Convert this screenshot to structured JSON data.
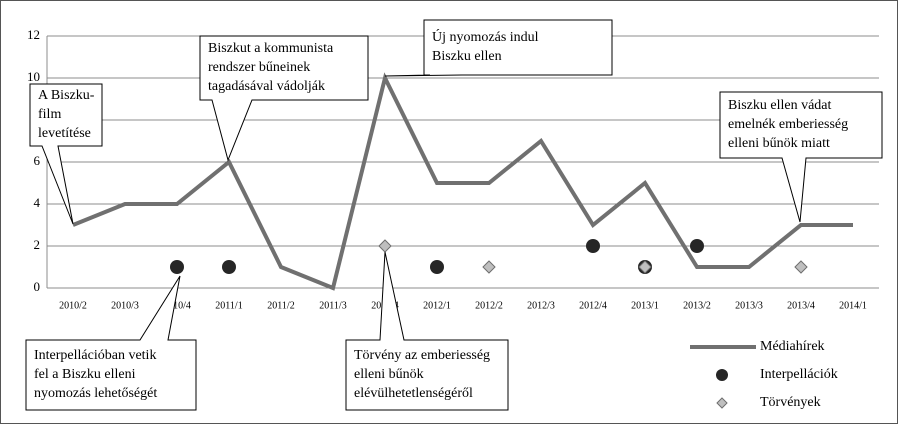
{
  "chart_data": {
    "type": "line",
    "categories": [
      "2010/2",
      "2010/3",
      "2010/4",
      "2011/1",
      "2011/2",
      "2011/3",
      "2011/4",
      "2012/1",
      "2012/2",
      "2012/3",
      "2012/4",
      "2013/1",
      "2013/2",
      "2013/3",
      "2013/4",
      "2014/1"
    ],
    "series": [
      {
        "name": "Médiahírek",
        "color": "#707070",
        "marker": "line",
        "values": [
          3,
          4,
          4,
          6,
          1,
          0,
          10,
          5,
          5,
          7,
          3,
          5,
          1,
          1,
          3,
          3
        ]
      },
      {
        "name": "Interpellációk",
        "color": "#262626",
        "marker": "circle",
        "values": [
          null,
          null,
          1,
          1,
          null,
          null,
          null,
          1,
          null,
          null,
          2,
          1,
          2,
          null,
          null,
          null
        ]
      },
      {
        "name": "Törvények",
        "color": "#bfbfbf",
        "marker": "diamond",
        "values": [
          null,
          null,
          null,
          null,
          null,
          null,
          2,
          null,
          1,
          null,
          null,
          1,
          null,
          null,
          1,
          null
        ]
      }
    ],
    "ylim": [
      0,
      12
    ],
    "yticks": [
      0,
      2,
      4,
      6,
      8,
      10,
      12
    ],
    "grid": true,
    "legend": "bottom-right",
    "annotations": [
      {
        "lines": [
          "A Biszku-",
          "film",
          "levetítése"
        ]
      },
      {
        "lines": [
          "Biszkut a kommunista",
          "rendszer bűneinek",
          "tagadásával vádolják"
        ]
      },
      {
        "lines": [
          "Új nyomozás indul",
          "Biszku ellen"
        ]
      },
      {
        "lines": [
          "Biszku ellen vádat",
          "emelnék emberiesség",
          "elleni bűnök miatt"
        ]
      },
      {
        "lines": [
          "Interpellációban vetik",
          "fel a Biszku elleni",
          "nyomozás lehetőségét"
        ]
      },
      {
        "lines": [
          "Törvény az emberiesség",
          "elleni bűnök",
          "elévülhetetlenségéről"
        ]
      }
    ]
  }
}
